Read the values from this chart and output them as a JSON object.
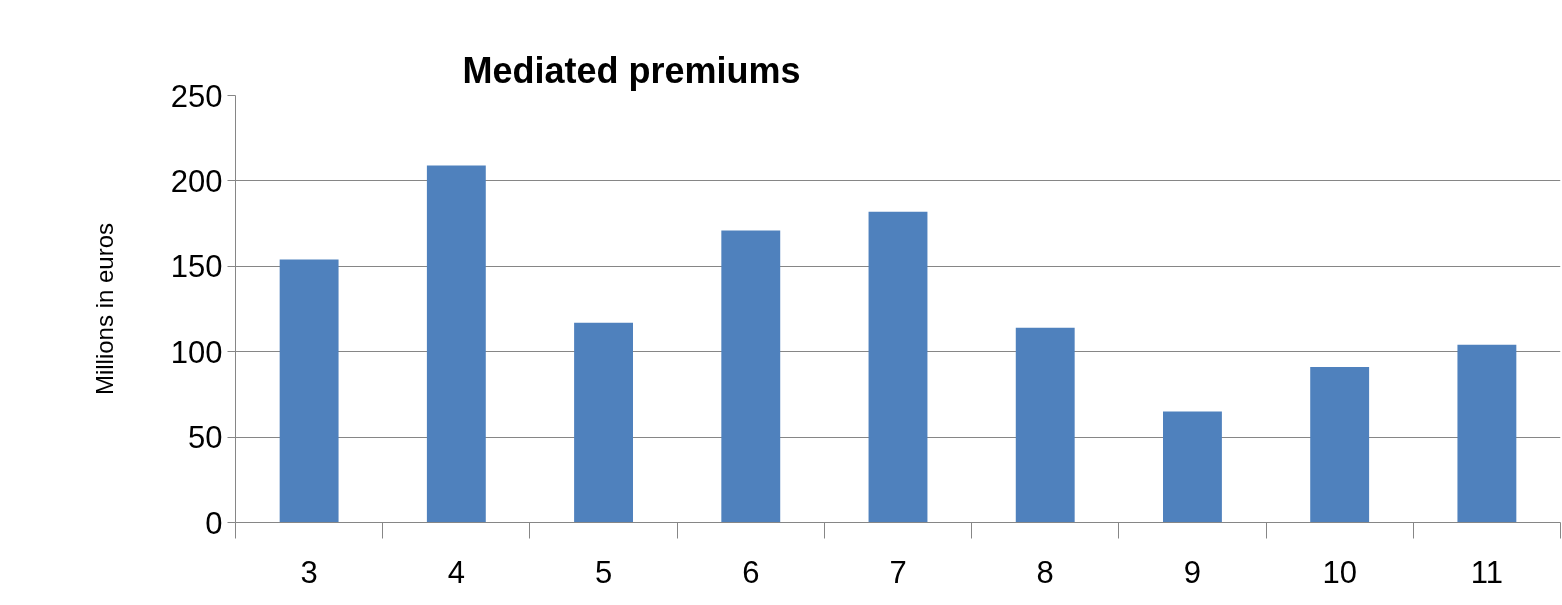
{
  "chart_data": {
    "type": "bar",
    "title": "Mediated premiums",
    "ylabel": "Millions in euros",
    "categories": [
      "3",
      "4",
      "5",
      "6",
      "7",
      "8",
      "9",
      "10",
      "11"
    ],
    "values": [
      154,
      209,
      117,
      171,
      182,
      114,
      65,
      91,
      104
    ],
    "color": "#4f81bd",
    "ylim": [
      0,
      250
    ],
    "yticks": [
      0,
      50,
      100,
      150,
      200,
      250
    ],
    "grid": "y"
  }
}
